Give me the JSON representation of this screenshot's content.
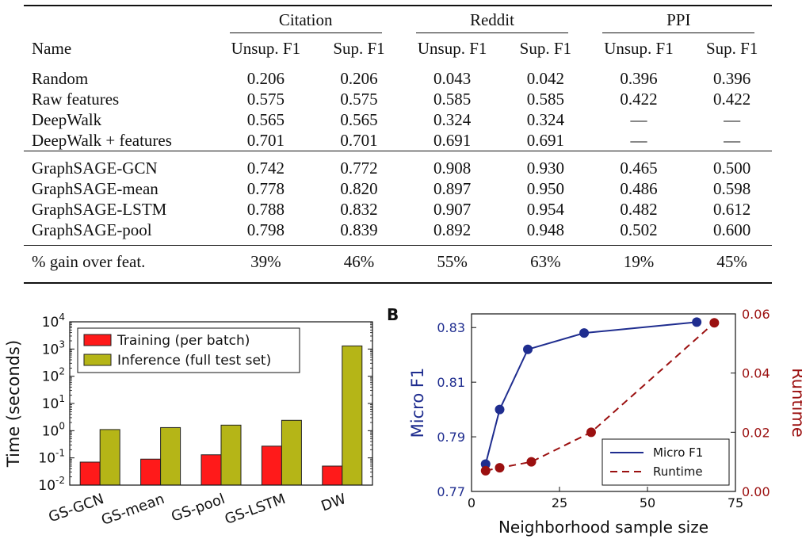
{
  "table": {
    "groups": [
      "Citation",
      "Reddit",
      "PPI"
    ],
    "name_header": "Name",
    "col_headers": [
      "Unsup. F1",
      "Sup. F1",
      "Unsup. F1",
      "Sup. F1",
      "Unsup. F1",
      "Sup. F1"
    ],
    "rows": [
      {
        "name": "Random",
        "cells": [
          {
            "v": "0.206"
          },
          {
            "v": "0.206"
          },
          {
            "v": "0.043"
          },
          {
            "v": "0.042"
          },
          {
            "v": "0.396"
          },
          {
            "v": "0.396"
          }
        ]
      },
      {
        "name": "Raw features",
        "cells": [
          {
            "v": "0.575"
          },
          {
            "v": "0.575"
          },
          {
            "v": "0.585"
          },
          {
            "v": "0.585"
          },
          {
            "v": "0.422"
          },
          {
            "v": "0.422"
          }
        ]
      },
      {
        "name": "DeepWalk",
        "cells": [
          {
            "v": "0.565"
          },
          {
            "v": "0.565"
          },
          {
            "v": "0.324"
          },
          {
            "v": "0.324"
          },
          {
            "v": "—"
          },
          {
            "v": "—"
          }
        ]
      },
      {
        "name": "DeepWalk + features",
        "cells": [
          {
            "v": "0.701"
          },
          {
            "v": "0.701"
          },
          {
            "v": "0.691"
          },
          {
            "v": "0.691"
          },
          {
            "v": "—"
          },
          {
            "v": "—"
          }
        ]
      },
      {
        "name": "GraphSAGE-GCN",
        "cells": [
          {
            "v": "0.742"
          },
          {
            "v": "0.772"
          },
          {
            "v": "0.908",
            "bold": true
          },
          {
            "v": "0.930"
          },
          {
            "v": "0.465"
          },
          {
            "v": "0.500"
          }
        ]
      },
      {
        "name": "GraphSAGE-mean",
        "cells": [
          {
            "v": "0.778"
          },
          {
            "v": "0.820"
          },
          {
            "v": "0.897"
          },
          {
            "v": "0.950"
          },
          {
            "v": "0.486"
          },
          {
            "v": "0.598"
          }
        ]
      },
      {
        "name": "GraphSAGE-LSTM",
        "cells": [
          {
            "v": "0.788"
          },
          {
            "v": "0.832"
          },
          {
            "v": "0.907",
            "bold": true
          },
          {
            "v": "0.954",
            "bold": true
          },
          {
            "v": "0.482"
          },
          {
            "v": "0.612",
            "bold": true
          }
        ]
      },
      {
        "name": "GraphSAGE-pool",
        "cells": [
          {
            "v": "0.798",
            "bold": true
          },
          {
            "v": "0.839",
            "bold": true
          },
          {
            "v": "0.892"
          },
          {
            "v": "0.948"
          },
          {
            "v": "0.502",
            "bold": true
          },
          {
            "v": "0.600"
          }
        ]
      }
    ],
    "gain_row": {
      "name": "% gain over feat.",
      "cells": [
        "39%",
        "46%",
        "55%",
        "63%",
        "19%",
        "45%"
      ]
    }
  },
  "chart_data": [
    {
      "type": "bar",
      "ylabel": "Time (seconds)",
      "yscale": "log",
      "ylim": [
        0.01,
        10000
      ],
      "y_ticks": [
        "10^-2",
        "10^-1",
        "10^0",
        "10^1",
        "10^2",
        "10^3",
        "10^4"
      ],
      "categories": [
        "GS-GCN",
        "GS-mean",
        "GS-pool",
        "GS-LSTM",
        "DW"
      ],
      "legend_position": "top-left",
      "series": [
        {
          "name": "Training (per batch)",
          "color": "#ff1a1a",
          "values": [
            0.07,
            0.09,
            0.13,
            0.27,
            0.05
          ]
        },
        {
          "name": "Inference (full test set)",
          "color": "#b5b517",
          "values": [
            1.1,
            1.3,
            1.6,
            2.4,
            1300
          ]
        }
      ]
    },
    {
      "type": "line",
      "panel_label": "B",
      "xlabel": "Neighborhood sample size",
      "ylabel_left": "Micro F1",
      "ylabel_right": "Runtime",
      "xlim": [
        0,
        75
      ],
      "ylim_left": [
        0.77,
        0.835
      ],
      "ylim_right": [
        0.0,
        0.06
      ],
      "x_ticks": [
        "0",
        "25",
        "50",
        "75"
      ],
      "y_ticks_left": [
        "0.77",
        "0.79",
        "0.81",
        "0.83"
      ],
      "y_ticks_right": [
        "0.00",
        "0.02",
        "0.04",
        "0.06"
      ],
      "legend_position": "bottom-right",
      "series": [
        {
          "name": "Micro F1",
          "axis": "left",
          "color": "#1f2d8f",
          "style": "solid",
          "x": [
            4,
            8,
            16,
            32,
            64
          ],
          "y": [
            0.78,
            0.8,
            0.822,
            0.828,
            0.832
          ]
        },
        {
          "name": "Runtime",
          "axis": "right",
          "color": "#9b1010",
          "style": "dashed",
          "x": [
            4,
            8,
            17,
            34,
            69
          ],
          "y": [
            0.007,
            0.008,
            0.01,
            0.02,
            0.057
          ]
        }
      ]
    }
  ]
}
